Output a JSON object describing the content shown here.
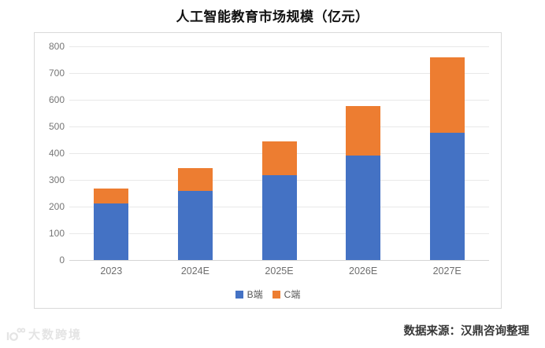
{
  "title": "人工智能教育市场规模（亿元）",
  "source_note": "数据来源：汉鼎咨询整理",
  "watermark": {
    "brand": "大数跨境"
  },
  "colors": {
    "series_b": "#4472C4",
    "series_c": "#ED7D31",
    "gridline": "#E8E8E8",
    "axis_text": "#6E6E6E",
    "panel_border": "#D9D9D9"
  },
  "chart_data": {
    "type": "bar",
    "stacked": true,
    "title": "人工智能教育市场规模（亿元）",
    "categories": [
      "2023",
      "2024E",
      "2025E",
      "2026E",
      "2027E"
    ],
    "series": [
      {
        "name": "B端",
        "color": "#4472C4",
        "values": [
          213,
          260,
          318,
          390,
          476
        ]
      },
      {
        "name": "C端",
        "color": "#ED7D31",
        "values": [
          55,
          85,
          125,
          187,
          283
        ]
      }
    ],
    "totals": [
      268,
      345,
      443,
      577,
      759
    ],
    "xlabel": "",
    "ylabel": "",
    "ylim": [
      0,
      800
    ],
    "yticks": [
      0,
      100,
      200,
      300,
      400,
      500,
      600,
      700,
      800
    ],
    "grid": true,
    "legend_position": "bottom"
  }
}
